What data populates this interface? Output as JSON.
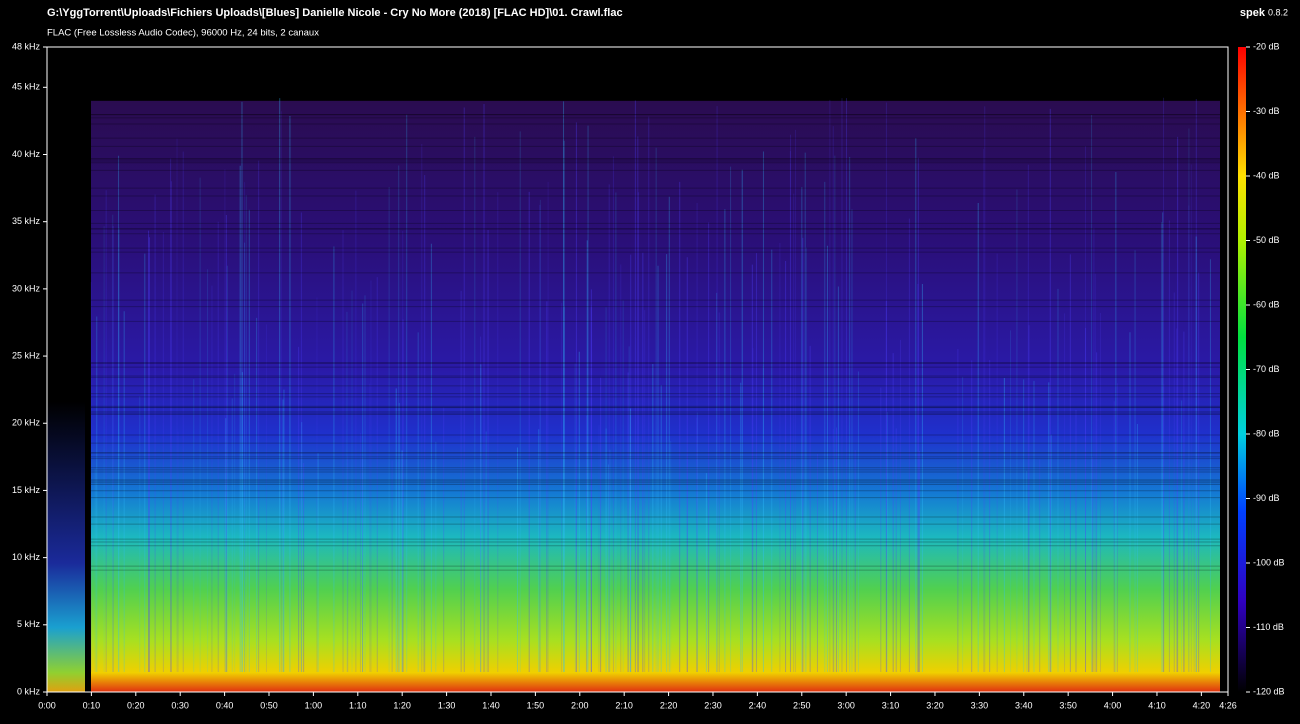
{
  "chart_data": {
    "type": "spectrogram",
    "title": "G:\\YggTorrent\\Uploads\\Fichiers Uploads\\[Blues] Danielle Nicole - Cry No More (2018) [FLAC HD]\\01. Crawl.flac",
    "subtitle": "FLAC (Free Lossless Audio Codec), 96000 Hz, 24 bits, 2 canaux",
    "app": "spek",
    "version": "0.8.2",
    "xlim": [
      0,
      266
    ],
    "xticks": [
      {
        "value": 0,
        "label": "0:00"
      },
      {
        "value": 10,
        "label": "0:10"
      },
      {
        "value": 20,
        "label": "0:20"
      },
      {
        "value": 30,
        "label": "0:30"
      },
      {
        "value": 40,
        "label": "0:40"
      },
      {
        "value": 50,
        "label": "0:50"
      },
      {
        "value": 60,
        "label": "1:00"
      },
      {
        "value": 70,
        "label": "1:10"
      },
      {
        "value": 80,
        "label": "1:20"
      },
      {
        "value": 90,
        "label": "1:30"
      },
      {
        "value": 100,
        "label": "1:40"
      },
      {
        "value": 110,
        "label": "1:50"
      },
      {
        "value": 120,
        "label": "2:00"
      },
      {
        "value": 130,
        "label": "2:10"
      },
      {
        "value": 140,
        "label": "2:20"
      },
      {
        "value": 150,
        "label": "2:30"
      },
      {
        "value": 160,
        "label": "2:40"
      },
      {
        "value": 170,
        "label": "2:50"
      },
      {
        "value": 180,
        "label": "3:00"
      },
      {
        "value": 190,
        "label": "3:10"
      },
      {
        "value": 200,
        "label": "3:20"
      },
      {
        "value": 210,
        "label": "3:30"
      },
      {
        "value": 220,
        "label": "3:40"
      },
      {
        "value": 230,
        "label": "3:50"
      },
      {
        "value": 240,
        "label": "4:00"
      },
      {
        "value": 250,
        "label": "4:10"
      },
      {
        "value": 260,
        "label": "4:20"
      },
      {
        "value": 266,
        "label": "4:26"
      }
    ],
    "ylim": [
      0,
      48
    ],
    "yticks": [
      {
        "value": 0,
        "label": "0 kHz"
      },
      {
        "value": 5,
        "label": "5 kHz"
      },
      {
        "value": 10,
        "label": "10 kHz"
      },
      {
        "value": 15,
        "label": "15 kHz"
      },
      {
        "value": 20,
        "label": "20 kHz"
      },
      {
        "value": 25,
        "label": "25 kHz"
      },
      {
        "value": 30,
        "label": "30 kHz"
      },
      {
        "value": 35,
        "label": "35 kHz"
      },
      {
        "value": 40,
        "label": "40 kHz"
      },
      {
        "value": 45,
        "label": "45 kHz"
      },
      {
        "value": 48,
        "label": "48 kHz"
      }
    ],
    "zlim": [
      -120,
      -20
    ],
    "zticks": [
      {
        "value": -20,
        "label": "-20 dB"
      },
      {
        "value": -30,
        "label": "-30 dB"
      },
      {
        "value": -40,
        "label": "-40 dB"
      },
      {
        "value": -50,
        "label": "-50 dB"
      },
      {
        "value": -60,
        "label": "-60 dB"
      },
      {
        "value": -70,
        "label": "-70 dB"
      },
      {
        "value": -80,
        "label": "-80 dB"
      },
      {
        "value": -90,
        "label": "-90 dB"
      },
      {
        "value": -100,
        "label": "-100 dB"
      },
      {
        "value": -110,
        "label": "-110 dB"
      },
      {
        "value": -120,
        "label": "-120 dB"
      }
    ]
  }
}
